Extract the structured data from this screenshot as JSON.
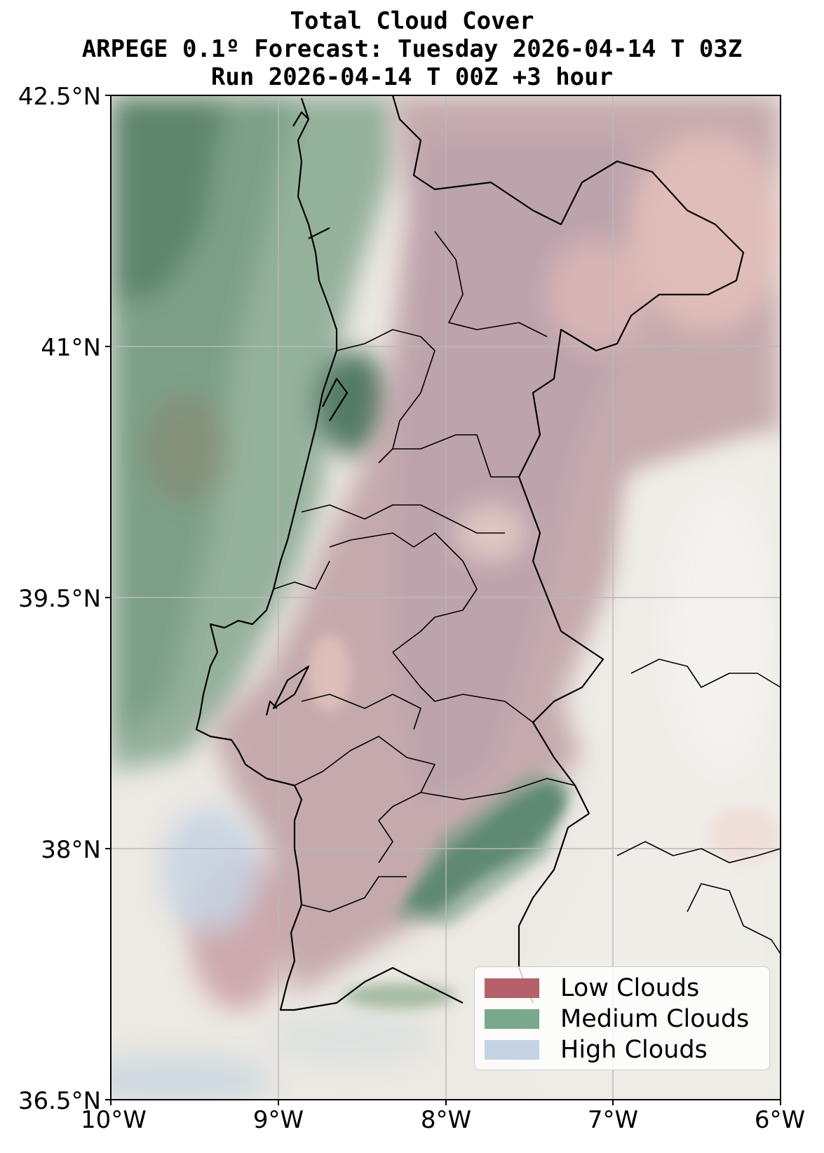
{
  "title": {
    "line1": "Total Cloud Cover",
    "line2": "ARPEGE 0.1º Forecast: Tuesday 2026-04-14 T 03Z",
    "line3": "Run 2026-04-14 T 00Z +3 hour"
  },
  "axes": {
    "lat_ticks": [
      "42.5°N",
      "41°N",
      "39.5°N",
      "38°N",
      "36.5°N"
    ],
    "lon_ticks": [
      "10°W",
      "9°W",
      "8°W",
      "7°W",
      "6°W"
    ],
    "lat_range": [
      36.5,
      42.5
    ],
    "lon_range": [
      -10,
      -6
    ],
    "grid": true
  },
  "legend": {
    "placement": "bottom-right",
    "items": [
      {
        "label": "Low Clouds",
        "color": "#b5606a"
      },
      {
        "label": "Medium Clouds",
        "color": "#7aa88b"
      },
      {
        "label": "High Clouds",
        "color": "#c6d3e3"
      }
    ]
  },
  "colors": {
    "low": "#c98c92",
    "medium": "#6f9a80",
    "medium_dark": "#3f6a55",
    "high": "#c6d3e3",
    "land_clear": "#f1f2ee"
  }
}
